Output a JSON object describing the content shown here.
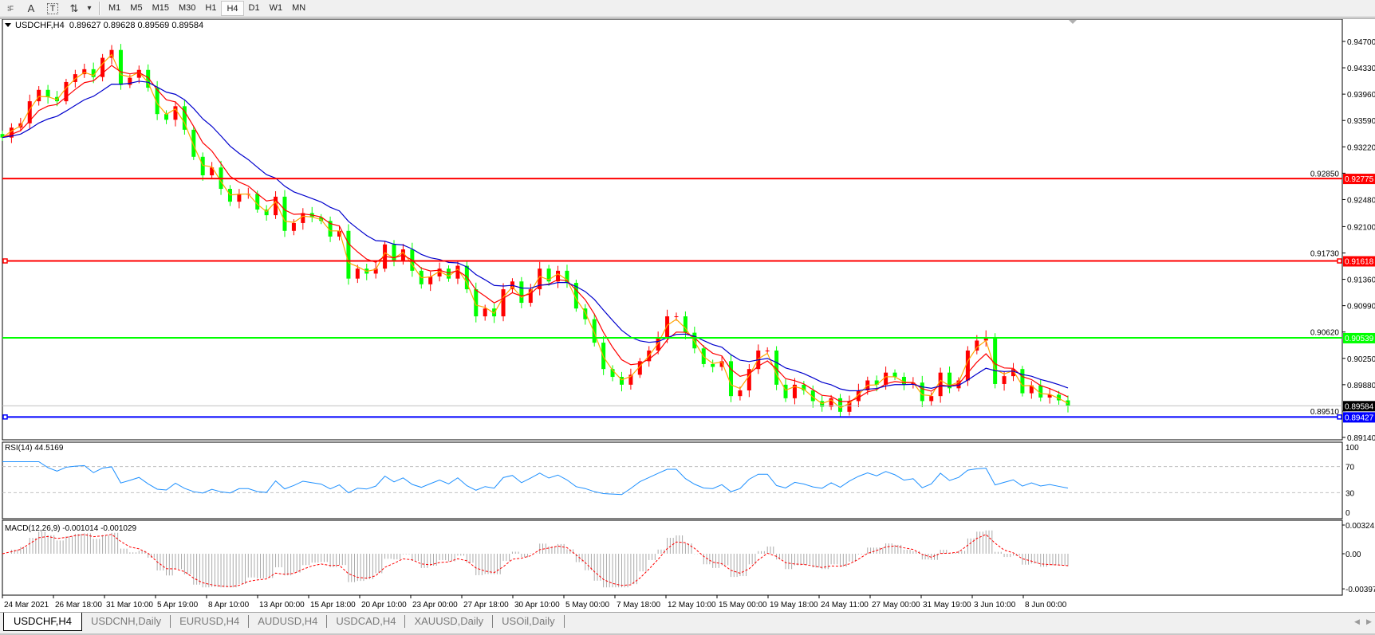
{
  "toolbar": {
    "tools": [
      {
        "icon": "fibonacci-fan-icon",
        "glyph": "⁞F"
      },
      {
        "icon": "text-icon",
        "glyph": "A"
      },
      {
        "icon": "text-label-icon",
        "glyph": "T"
      },
      {
        "icon": "arrows-icon",
        "glyph": "⇅"
      }
    ],
    "dropdown_glyph": "▾",
    "timeframes": [
      "M1",
      "M5",
      "M15",
      "M30",
      "H1",
      "H4",
      "D1",
      "W1",
      "MN"
    ],
    "active_timeframe": "H4"
  },
  "chart": {
    "title": "USDCHF,H4",
    "ohlc": "0.89627 0.89628 0.89569 0.89584"
  },
  "colors": {
    "bull_candle": "#ff0000",
    "bear_candle": "#00ff00",
    "ma_fast": "#ffa500",
    "ma_mid": "#ff0000",
    "ma_slow": "#0000cd",
    "rsi_line": "#1e90ff",
    "macd_hist": "#a9a9a9",
    "macd_signal": "#ff0000",
    "bid_line": "#c0c0c0"
  },
  "chart_data": {
    "type": "candlestick",
    "symbol": "USDCHF",
    "timeframe": "H4",
    "close": [
      0.9335,
      0.9349,
      0.9355,
      0.9386,
      0.9402,
      0.9392,
      0.9386,
      0.9413,
      0.9424,
      0.9431,
      0.942,
      0.9447,
      0.9458,
      0.9409,
      0.9419,
      0.943,
      0.9405,
      0.9368,
      0.936,
      0.9379,
      0.9346,
      0.9308,
      0.9282,
      0.9293,
      0.9263,
      0.9245,
      0.9256,
      0.9256,
      0.9234,
      0.9226,
      0.9252,
      0.9204,
      0.9215,
      0.9229,
      0.9223,
      0.9218,
      0.9196,
      0.9204,
      0.9137,
      0.9151,
      0.9144,
      0.9151,
      0.9185,
      0.9162,
      0.9178,
      0.9148,
      0.9129,
      0.914,
      0.9151,
      0.9137,
      0.9155,
      0.9122,
      0.9084,
      0.9095,
      0.9084,
      0.9122,
      0.9133,
      0.9103,
      0.9122,
      0.9151,
      0.9133,
      0.9148,
      0.9131,
      0.9095,
      0.908,
      0.9047,
      0.901,
      0.8999,
      0.8988,
      0.9002,
      0.9021,
      0.9036,
      0.9055,
      0.9084,
      0.9084,
      0.9061,
      0.9039,
      0.9017,
      0.9013,
      0.9021,
      0.8972,
      0.898,
      0.901,
      0.9036,
      0.9036,
      0.8988,
      0.8969,
      0.8988,
      0.898,
      0.8965,
      0.8957,
      0.8969,
      0.895,
      0.8965,
      0.898,
      0.8994,
      0.8988,
      0.9005,
      0.8999,
      0.8988,
      0.8991,
      0.8965,
      0.8972,
      0.9005,
      0.8983,
      0.8994,
      0.9036,
      0.905,
      0.9055,
      0.8989,
      0.9,
      0.901,
      0.8976,
      0.8987,
      0.897,
      0.8974,
      0.8966,
      0.89584
    ],
    "ylim": [
      0.8914,
      0.947
    ],
    "price_axis": {
      "ticks": [
        "0.94700",
        "0.94330",
        "0.93960",
        "0.93590",
        "0.93220",
        "0.92850",
        "0.92480",
        "0.92100",
        "0.91730",
        "0.91360",
        "0.90990",
        "0.90620",
        "0.90250",
        "0.89880",
        "0.89510",
        "0.89140"
      ]
    },
    "levels": [
      {
        "price": "0.92775",
        "color": "#ff0000",
        "handles": false
      },
      {
        "price": "0.91618",
        "color": "#ff0000",
        "handles": true
      },
      {
        "price": "0.90539",
        "color": "#00ff00",
        "handles": false
      },
      {
        "price": "0.89427",
        "color": "#0000ff",
        "handles": true
      }
    ],
    "bid": "0.89584",
    "time_axis": {
      "ticks": [
        "24 Mar 2021",
        "26 Mar 18:00",
        "31 Mar 10:00",
        "5 Apr 19:00",
        "8 Apr 10:00",
        "13 Apr 00:00",
        "15 Apr 18:00",
        "20 Apr 10:00",
        "23 Apr 00:00",
        "27 Apr 18:00",
        "30 Apr 10:00",
        "5 May 00:00",
        "7 May 18:00",
        "12 May 10:00",
        "15 May 00:00",
        "19 May 18:00",
        "24 May 11:00",
        "27 May 00:00",
        "31 May 19:00",
        "3 Jun 10:00",
        "8 Jun 00:00"
      ]
    },
    "rsi": {
      "label": "RSI(14) 44.5169",
      "ticks": [
        "100",
        "70",
        "30",
        "0"
      ],
      "levels": [
        70,
        30
      ],
      "ylim": [
        0,
        100
      ]
    },
    "macd": {
      "label": "MACD(12,26,9) -0.001014 -0.001029",
      "ticks": [
        "0.003241",
        "0.00",
        "-0.003970"
      ],
      "ylim": [
        -0.00397,
        0.003241
      ]
    }
  },
  "tabs": [
    "USDCHF,H4",
    "USDCNH,Daily",
    "EURUSD,H4",
    "AUDUSD,H4",
    "USDCAD,H4",
    "XAUUSD,Daily",
    "USOil,Daily"
  ],
  "active_tab": "USDCHF,H4",
  "scroll": {
    "left": "◀",
    "right": "▶"
  }
}
